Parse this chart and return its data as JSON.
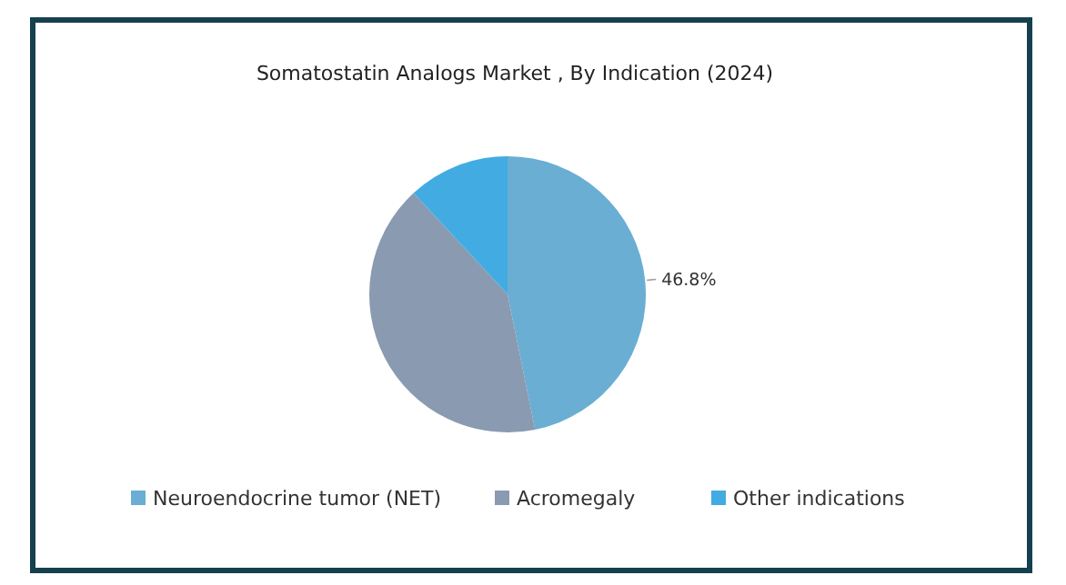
{
  "chart_data": {
    "type": "pie",
    "title": "Somatostatin Analogs Market , By Indication (2024)",
    "categories": [
      "Neuroendocrine tumor (NET)",
      "Acromegaly",
      "Other indications"
    ],
    "values": [
      46.8,
      41.3,
      11.9
    ],
    "colors": [
      "#6aaed3",
      "#8a9ab0",
      "#42ace2"
    ],
    "value_labels": [
      "46.8%",
      null,
      null
    ],
    "legend": "bottom"
  }
}
